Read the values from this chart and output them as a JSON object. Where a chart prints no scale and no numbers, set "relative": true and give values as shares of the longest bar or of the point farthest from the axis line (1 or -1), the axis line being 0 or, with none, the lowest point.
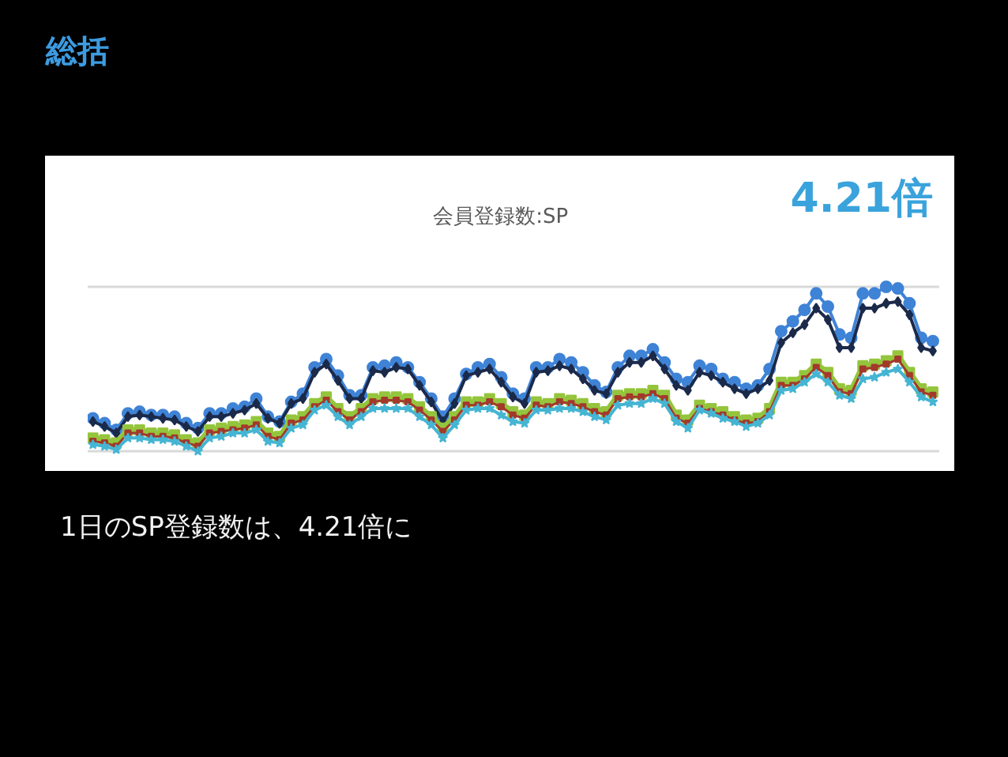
{
  "chart_data": {
    "type": "line",
    "title": "会員登録数:SP",
    "relative": true,
    "grid": "y",
    "annotations": [
      "総括",
      "4.21倍",
      "1日のSP登録数は、4.21倍に"
    ],
    "categories": [
      null,
      null,
      null,
      null,
      null,
      null,
      null,
      null,
      null,
      null,
      null,
      null,
      null,
      null,
      null,
      null,
      null,
      null,
      null,
      null,
      null,
      null,
      null,
      null,
      null,
      null,
      null,
      null,
      null,
      null,
      null,
      null,
      null,
      null,
      null,
      null,
      null,
      null,
      null,
      null,
      null,
      null,
      null,
      null,
      null,
      null,
      null,
      null,
      null,
      null,
      null,
      null,
      null,
      null,
      null,
      null,
      null,
      null,
      null,
      null,
      null,
      null,
      null,
      null,
      null,
      null,
      null,
      null,
      null,
      null,
      null,
      null,
      null
    ],
    "series": [
      {
        "color": "#3f83d6",
        "marker": "circle",
        "values": [
          0.2,
          0.17,
          0.13,
          0.23,
          0.24,
          0.22,
          0.22,
          0.21,
          0.17,
          0.14,
          0.23,
          0.23,
          0.26,
          0.27,
          0.32,
          0.21,
          0.18,
          0.3,
          0.35,
          0.51,
          0.56,
          0.46,
          0.34,
          0.34,
          0.51,
          0.52,
          0.54,
          0.51,
          0.42,
          0.32,
          0.21,
          0.32,
          0.47,
          0.51,
          0.53,
          0.45,
          0.35,
          0.32,
          0.51,
          0.51,
          0.56,
          0.54,
          0.48,
          0.4,
          0.36,
          0.51,
          0.58,
          0.58,
          0.62,
          0.54,
          0.44,
          0.42,
          0.52,
          0.5,
          0.44,
          0.42,
          0.38,
          0.4,
          0.5,
          0.73,
          0.79,
          0.86,
          0.96,
          0.88,
          0.71,
          0.69,
          0.96,
          0.96,
          1,
          0.99,
          0.9,
          0.69,
          0.67
        ]
      },
      {
        "color": "#1b2a4a",
        "marker": "diamond",
        "values": [
          0.18,
          0.15,
          0.11,
          0.21,
          0.22,
          0.21,
          0.2,
          0.19,
          0.15,
          0.12,
          0.21,
          0.21,
          0.23,
          0.25,
          0.29,
          0.2,
          0.17,
          0.29,
          0.32,
          0.48,
          0.53,
          0.43,
          0.32,
          0.32,
          0.49,
          0.48,
          0.51,
          0.5,
          0.4,
          0.3,
          0.18,
          0.29,
          0.46,
          0.48,
          0.5,
          0.42,
          0.33,
          0.29,
          0.48,
          0.49,
          0.52,
          0.5,
          0.44,
          0.37,
          0.35,
          0.48,
          0.54,
          0.54,
          0.58,
          0.5,
          0.4,
          0.37,
          0.48,
          0.46,
          0.42,
          0.38,
          0.35,
          0.38,
          0.43,
          0.66,
          0.72,
          0.77,
          0.87,
          0.8,
          0.63,
          0.63,
          0.87,
          0.87,
          0.9,
          0.91,
          0.83,
          0.63,
          0.61
        ]
      },
      {
        "color": "#94c53c",
        "marker": "square",
        "values": [
          0.08,
          0.07,
          0.05,
          0.13,
          0.13,
          0.11,
          0.11,
          0.1,
          0.07,
          0.05,
          0.13,
          0.14,
          0.15,
          0.16,
          0.18,
          0.11,
          0.09,
          0.19,
          0.21,
          0.29,
          0.33,
          0.26,
          0.21,
          0.26,
          0.32,
          0.33,
          0.33,
          0.32,
          0.27,
          0.21,
          0.14,
          0.21,
          0.3,
          0.3,
          0.32,
          0.29,
          0.24,
          0.22,
          0.3,
          0.29,
          0.32,
          0.31,
          0.29,
          0.26,
          0.24,
          0.34,
          0.35,
          0.35,
          0.37,
          0.34,
          0.22,
          0.19,
          0.28,
          0.26,
          0.24,
          0.21,
          0.19,
          0.2,
          0.26,
          0.42,
          0.42,
          0.46,
          0.53,
          0.48,
          0.38,
          0.37,
          0.52,
          0.53,
          0.55,
          0.58,
          0.48,
          0.38,
          0.36
        ]
      },
      {
        "color": "#a3392b",
        "marker": "square",
        "values": [
          0.06,
          0.05,
          0.03,
          0.11,
          0.11,
          0.09,
          0.09,
          0.08,
          0.05,
          0.03,
          0.11,
          0.12,
          0.13,
          0.14,
          0.16,
          0.09,
          0.07,
          0.17,
          0.19,
          0.27,
          0.31,
          0.24,
          0.19,
          0.24,
          0.3,
          0.31,
          0.31,
          0.3,
          0.25,
          0.19,
          0.12,
          0.19,
          0.28,
          0.28,
          0.3,
          0.27,
          0.22,
          0.2,
          0.28,
          0.27,
          0.3,
          0.29,
          0.27,
          0.24,
          0.22,
          0.32,
          0.33,
          0.33,
          0.35,
          0.32,
          0.2,
          0.17,
          0.26,
          0.24,
          0.22,
          0.19,
          0.17,
          0.18,
          0.24,
          0.4,
          0.4,
          0.44,
          0.51,
          0.46,
          0.36,
          0.35,
          0.5,
          0.51,
          0.53,
          0.56,
          0.46,
          0.36,
          0.34
        ]
      },
      {
        "color": "#45b5d3",
        "marker": "star",
        "values": [
          0.04,
          0.03,
          0.01,
          0.08,
          0.08,
          0.07,
          0.07,
          0.06,
          0.03,
          0,
          0.08,
          0.09,
          0.11,
          0.11,
          0.13,
          0.06,
          0.05,
          0.14,
          0.16,
          0.25,
          0.28,
          0.21,
          0.16,
          0.21,
          0.26,
          0.26,
          0.26,
          0.26,
          0.21,
          0.16,
          0.08,
          0.16,
          0.25,
          0.26,
          0.26,
          0.22,
          0.18,
          0.17,
          0.25,
          0.25,
          0.26,
          0.26,
          0.24,
          0.21,
          0.19,
          0.28,
          0.29,
          0.29,
          0.32,
          0.29,
          0.18,
          0.14,
          0.25,
          0.23,
          0.2,
          0.18,
          0.15,
          0.17,
          0.22,
          0.37,
          0.38,
          0.42,
          0.47,
          0.42,
          0.34,
          0.32,
          0.44,
          0.45,
          0.48,
          0.5,
          0.42,
          0.33,
          0.3
        ]
      }
    ]
  }
}
